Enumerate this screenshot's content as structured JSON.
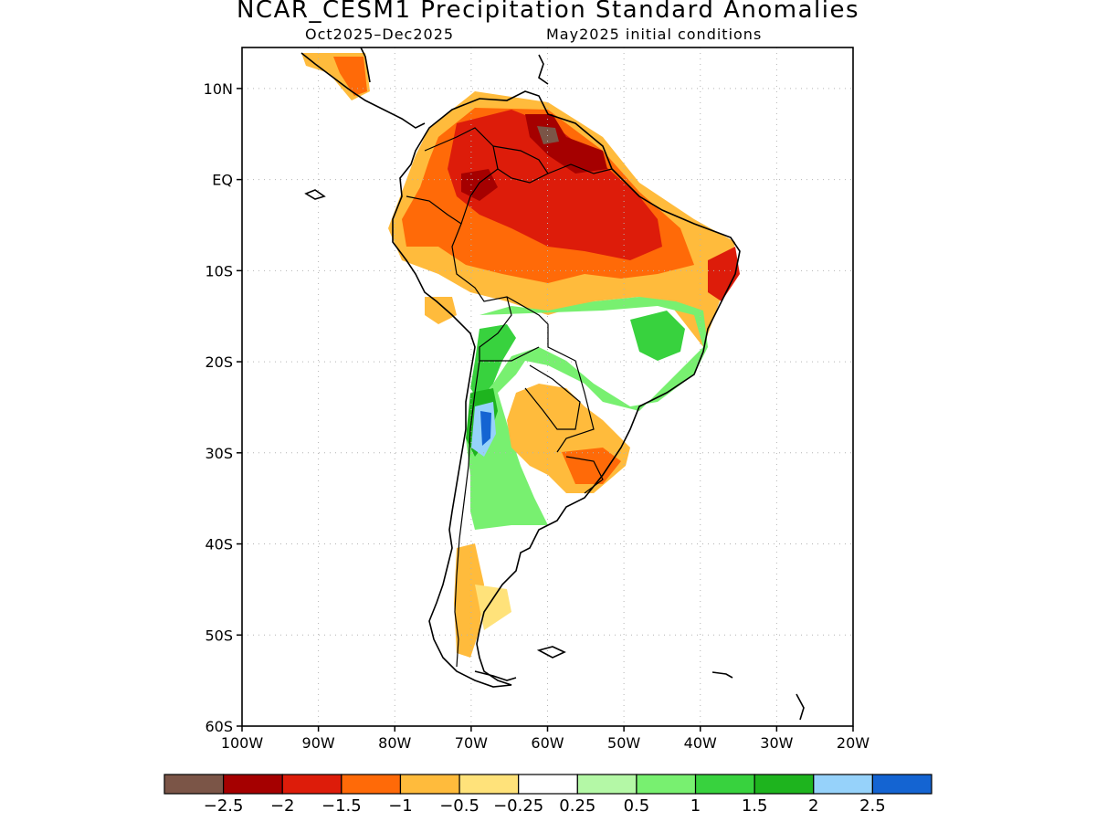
{
  "title": "NCAR_CESM1 Precipitation Standard Anomalies",
  "subtitle_left": "Oct2025–Dec2025",
  "subtitle_right": "May2025 initial conditions",
  "map": {
    "region": "South America",
    "lon_range": [
      -100,
      -20
    ],
    "lat_range": [
      -60,
      15
    ],
    "grid": "dotted",
    "lat_ticks": [
      {
        "lat": 10,
        "label": "10N"
      },
      {
        "lat": 0,
        "label": "EQ"
      },
      {
        "lat": -10,
        "label": "10S"
      },
      {
        "lat": -20,
        "label": "20S"
      },
      {
        "lat": -30,
        "label": "30S"
      },
      {
        "lat": -40,
        "label": "40S"
      },
      {
        "lat": -50,
        "label": "50S"
      },
      {
        "lat": -60,
        "label": "60S"
      }
    ],
    "lon_ticks": [
      {
        "lon": -100,
        "label": "100W"
      },
      {
        "lon": -90,
        "label": "90W"
      },
      {
        "lon": -80,
        "label": "80W"
      },
      {
        "lon": -70,
        "label": "70W"
      },
      {
        "lon": -60,
        "label": "60W"
      },
      {
        "lon": -50,
        "label": "50W"
      },
      {
        "lon": -40,
        "label": "40W"
      },
      {
        "lon": -30,
        "label": "30W"
      },
      {
        "lon": -20,
        "label": "20W"
      }
    ]
  },
  "colorbar": {
    "colors": [
      "#7b5547",
      "#a50000",
      "#dd1c0a",
      "#ff6a08",
      "#ffbb3c",
      "#ffe27a",
      "#ffffff",
      "#b4f8a6",
      "#78f070",
      "#38d23e",
      "#1eb41e",
      "#96d2fa",
      "#1464d2"
    ],
    "labels": [
      "−2.5",
      "−2",
      "−1.5",
      "−1",
      "−0.5",
      "−0.25",
      "0.25",
      "0.5",
      "1",
      "1.5",
      "2",
      "2.5"
    ]
  }
}
